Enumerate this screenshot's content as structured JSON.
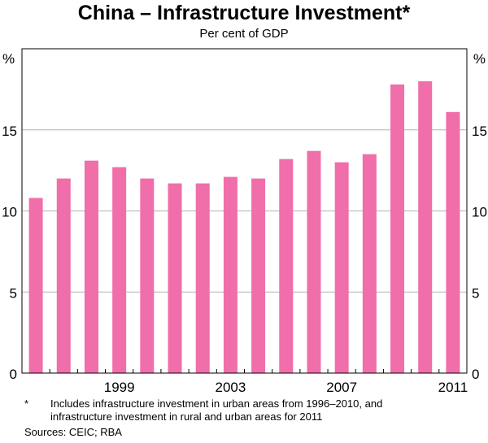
{
  "title": "China – Infrastructure Investment*",
  "subtitle": "Per cent of GDP",
  "chart_data": {
    "type": "bar",
    "title": "China – Infrastructure Investment*",
    "subtitle": "Per cent of GDP",
    "ylabel_left": "%",
    "ylabel_right": "%",
    "ylim": [
      0,
      20
    ],
    "yticks": [
      0,
      5,
      10,
      15
    ],
    "grid": true,
    "bar_color": "#f06ea9",
    "categories": [
      "1996",
      "1997",
      "1998",
      "1999",
      "2000",
      "2001",
      "2002",
      "2003",
      "2004",
      "2005",
      "2006",
      "2007",
      "2008",
      "2009",
      "2010",
      "2011"
    ],
    "xtick_labels": [
      {
        "category": "1999",
        "label": "1999"
      },
      {
        "category": "2003",
        "label": "2003"
      },
      {
        "category": "2007",
        "label": "2007"
      },
      {
        "category": "2011",
        "label": "2011"
      }
    ],
    "values": [
      10.8,
      12.0,
      13.1,
      12.7,
      12.0,
      11.7,
      11.7,
      12.1,
      12.0,
      13.2,
      13.7,
      13.0,
      13.5,
      17.8,
      18.0,
      16.1
    ]
  },
  "footnote": {
    "marker": "*",
    "lines": [
      "Includes infrastructure investment in urban areas from 1996–2010, and",
      "infrastructure investment in rural and urban areas for 2011"
    ]
  },
  "sources": "Sources: CEIC; RBA"
}
